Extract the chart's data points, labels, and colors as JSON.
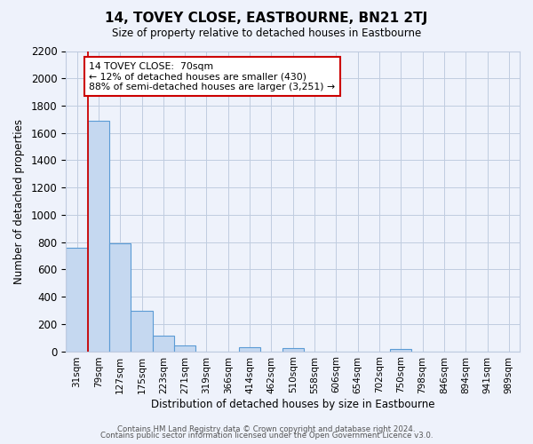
{
  "title": "14, TOVEY CLOSE, EASTBOURNE, BN21 2TJ",
  "subtitle": "Size of property relative to detached houses in Eastbourne",
  "xlabel": "Distribution of detached houses by size in Eastbourne",
  "ylabel": "Number of detached properties",
  "bar_labels": [
    "31sqm",
    "79sqm",
    "127sqm",
    "175sqm",
    "223sqm",
    "271sqm",
    "319sqm",
    "366sqm",
    "414sqm",
    "462sqm",
    "510sqm",
    "558sqm",
    "606sqm",
    "654sqm",
    "702sqm",
    "750sqm",
    "798sqm",
    "846sqm",
    "894sqm",
    "941sqm",
    "989sqm"
  ],
  "bar_values": [
    760,
    1690,
    790,
    295,
    115,
    40,
    0,
    0,
    30,
    0,
    20,
    0,
    0,
    0,
    0,
    15,
    0,
    0,
    0,
    0,
    0
  ],
  "bar_width": 1.0,
  "bar_color": "#c5d8f0",
  "bar_edge_color": "#5b9bd5",
  "ylim": [
    0,
    2200
  ],
  "yticks": [
    0,
    200,
    400,
    600,
    800,
    1000,
    1200,
    1400,
    1600,
    1800,
    2000,
    2200
  ],
  "property_line_x": 0.5,
  "property_line_color": "#cc0000",
  "annotation_title": "14 TOVEY CLOSE:  70sqm",
  "annotation_line1": "← 12% of detached houses are smaller (430)",
  "annotation_line2": "88% of semi-detached houses are larger (3,251) →",
  "footer_line1": "Contains HM Land Registry data © Crown copyright and database right 2024.",
  "footer_line2": "Contains public sector information licensed under the Open Government Licence v3.0.",
  "bg_color": "#eef2fb",
  "grid_color": "#c0cce0"
}
